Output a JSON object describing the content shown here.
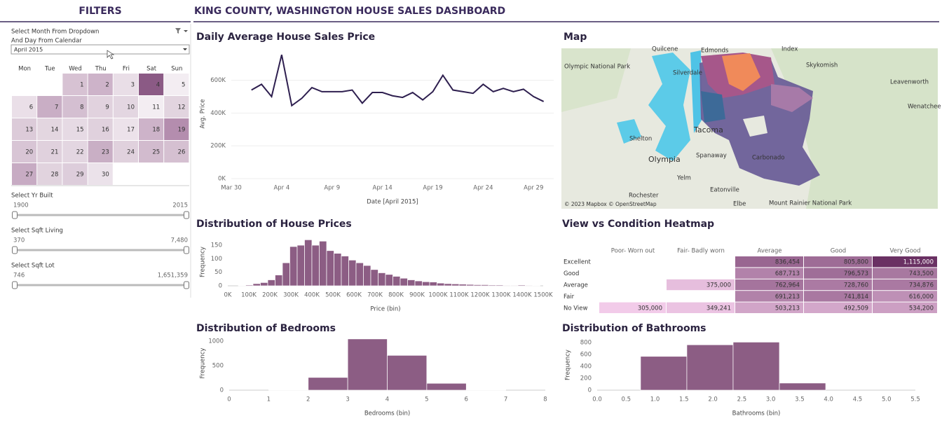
{
  "header": {
    "title": "KING COUNTY, WASHINGTON HOUSE SALES DASHBOARD"
  },
  "filters": {
    "title": "FILTERS",
    "month_prompt": [
      "Select Month From Dropdown",
      "And Day From Calendar"
    ],
    "month": "April 2015",
    "weekdays": [
      "Mon",
      "Tue",
      "Wed",
      "Thu",
      "Fri",
      "Sat",
      "Sun"
    ],
    "days": [
      1,
      2,
      3,
      4,
      5,
      6,
      7,
      8,
      9,
      10,
      11,
      12,
      13,
      14,
      15,
      16,
      17,
      18,
      19,
      20,
      21,
      22,
      23,
      24,
      25,
      26,
      27,
      28,
      29,
      30
    ],
    "day_colors": [
      "#d7c2d3",
      "#cdb3c9",
      "#e9dee7",
      "#8b5a85",
      "#f3edf2",
      "#eadfe8",
      "#c9aec5",
      "#d4bfd1",
      "#e1d2de",
      "#e3d6e1",
      "#f3edf2",
      "#e2d4df",
      "#dccbd9",
      "#e3d6e0",
      "#e6dae4",
      "#e0d1dd",
      "#ece2ea",
      "#cdb3c9",
      "#b48dae",
      "#d8c5d5",
      "#e0d1dd",
      "#e3d6e1",
      "#c9afc5",
      "#e0d1dd",
      "#d2bbce",
      "#d5c0d1",
      "#c7abc3",
      "#e1d3de",
      "#ddcddb",
      "#ebe2ea"
    ],
    "sliders": [
      {
        "label": "Select Yr Built",
        "min": "1900",
        "max": "2015"
      },
      {
        "label": "Select Sqft Living",
        "min": "370",
        "max": "7,480"
      },
      {
        "label": "Select Sqft Lot",
        "min": "746",
        "max": "1,651,359"
      }
    ]
  },
  "map": {
    "title": "Map",
    "places": [
      "Quilcene",
      "Edmonds",
      "Index",
      "Olympic National Park",
      "Silverdale",
      "Skykomish",
      "Leavenworth",
      "Wenatchee",
      "Shelton",
      "Tacoma",
      "Olympia",
      "Spanaway",
      "Carbonado",
      "Yelm",
      "Rochester",
      "Eatonville",
      "Elbe",
      "Mount Rainier National Park",
      "© 2023 Mapbox  © OpenStreetMap"
    ]
  },
  "chart_data": [
    {
      "type": "line",
      "title": "Daily Average House Sales Price",
      "x_label": "Date [April 2015]",
      "y_label": "Avg. Price",
      "color": "#2e1f4f",
      "grid": true,
      "x": [
        "2015-04-01",
        "2015-04-02",
        "2015-04-03",
        "2015-04-04",
        "2015-04-05",
        "2015-04-06",
        "2015-04-07",
        "2015-04-08",
        "2015-04-09",
        "2015-04-10",
        "2015-04-11",
        "2015-04-12",
        "2015-04-13",
        "2015-04-14",
        "2015-04-15",
        "2015-04-16",
        "2015-04-17",
        "2015-04-18",
        "2015-04-19",
        "2015-04-20",
        "2015-04-21",
        "2015-04-22",
        "2015-04-23",
        "2015-04-24",
        "2015-04-25",
        "2015-04-26",
        "2015-04-27",
        "2015-04-28",
        "2015-04-29",
        "2015-04-30"
      ],
      "values": [
        540000,
        575000,
        500000,
        755000,
        445000,
        490000,
        555000,
        530000,
        530000,
        530000,
        540000,
        460000,
        525000,
        525000,
        505000,
        495000,
        525000,
        480000,
        530000,
        630000,
        540000,
        530000,
        520000,
        575000,
        530000,
        550000,
        530000,
        545000,
        500000,
        470000
      ],
      "xlim": [
        "2015-03-30",
        "2015-05-01"
      ],
      "xticks": [
        {
          "value": "2015-03-30",
          "label": "Mar 30"
        },
        {
          "value": "2015-04-04",
          "label": "Apr 4"
        },
        {
          "value": "2015-04-09",
          "label": "Apr 9"
        },
        {
          "value": "2015-04-14",
          "label": "Apr 14"
        },
        {
          "value": "2015-04-19",
          "label": "Apr 19"
        },
        {
          "value": "2015-04-24",
          "label": "Apr 24"
        },
        {
          "value": "2015-04-29",
          "label": "Apr 29"
        }
      ],
      "ylim": [
        0,
        790000
      ],
      "yticks": [
        {
          "value": 0,
          "label": "0K"
        },
        {
          "value": 200000,
          "label": "200K"
        },
        {
          "value": 400000,
          "label": "400K"
        },
        {
          "value": 600000,
          "label": "600K"
        }
      ]
    },
    {
      "type": "histogram",
      "title": "Distribution of House Prices",
      "x_label": "Price (bin)",
      "y_label": "Frequency",
      "color": "#8c5d84",
      "bins": [
        50000,
        85000,
        120000,
        155000,
        190000,
        225000,
        260000,
        295000,
        330000,
        365000,
        400000,
        435000,
        470000,
        505000,
        540000,
        575000,
        610000,
        645000,
        680000,
        715000,
        750000,
        785000,
        820000,
        855000,
        890000,
        925000,
        960000,
        995000,
        1030000,
        1065000,
        1100000,
        1135000,
        1170000,
        1205000,
        1240000,
        1275000,
        1310000,
        1345000,
        1380000,
        1415000,
        1450000,
        1485000
      ],
      "values": [
        1,
        3,
        8,
        12,
        22,
        40,
        85,
        145,
        150,
        170,
        150,
        165,
        130,
        120,
        110,
        95,
        85,
        75,
        60,
        48,
        42,
        35,
        28,
        22,
        18,
        15,
        14,
        10,
        8,
        7,
        6,
        5,
        4,
        4,
        3,
        3,
        2,
        2,
        3,
        2,
        1
      ],
      "xlim": [
        0,
        1500000
      ],
      "xticks": [
        {
          "value": 0,
          "label": "0K"
        },
        {
          "value": 100000,
          "label": "100K"
        },
        {
          "value": 200000,
          "label": "200K"
        },
        {
          "value": 300000,
          "label": "300K"
        },
        {
          "value": 400000,
          "label": "400K"
        },
        {
          "value": 500000,
          "label": "500K"
        },
        {
          "value": 600000,
          "label": "600K"
        },
        {
          "value": 700000,
          "label": "700K"
        },
        {
          "value": 800000,
          "label": "800K"
        },
        {
          "value": 900000,
          "label": "900K"
        },
        {
          "value": 1000000,
          "label": "1000K"
        },
        {
          "value": 1100000,
          "label": "1100K"
        },
        {
          "value": 1200000,
          "label": "1200K"
        },
        {
          "value": 1300000,
          "label": "1300K"
        },
        {
          "value": 1400000,
          "label": "1400K"
        },
        {
          "value": 1500000,
          "label": "1500K"
        }
      ],
      "ylim": [
        0,
        176
      ],
      "yticks": [
        0,
        50,
        100,
        150
      ]
    },
    {
      "type": "heatmap",
      "title": "View vs Condition Heatmap",
      "colors": [
        "#f2cbe9",
        "#6a3163"
      ],
      "rows": [
        "Excellent",
        "Good",
        "Average",
        "Fair",
        "No View"
      ],
      "columns": [
        "Poor- Worn out",
        "Fair- Badly worn",
        "Average",
        "Good",
        "Very Good"
      ],
      "values": [
        [
          null,
          null,
          836454,
          805800,
          1115000
        ],
        [
          null,
          null,
          687713,
          796573,
          743500
        ],
        [
          null,
          375000,
          762964,
          728760,
          734876
        ],
        [
          null,
          null,
          691213,
          741814,
          616000
        ],
        [
          305000,
          349241,
          503213,
          492509,
          534200
        ]
      ],
      "value_labels": [
        [
          null,
          null,
          "836,454",
          "805,800",
          "1,115,000"
        ],
        [
          null,
          null,
          "687,713",
          "796,573",
          "743,500"
        ],
        [
          null,
          "375,000",
          "762,964",
          "728,760",
          "734,876"
        ],
        [
          null,
          null,
          "691,213",
          "741,814",
          "616,000"
        ],
        [
          "305,000",
          "349,241",
          "503,213",
          "492,509",
          "534,200"
        ]
      ]
    },
    {
      "type": "histogram",
      "title": "Distribution of Bedrooms",
      "x_label": "Bedrooms (bin)",
      "y_label": "Frequency",
      "color": "#8c5d84",
      "bins": [
        1,
        2,
        3,
        4,
        5,
        6,
        7
      ],
      "values": [
        10,
        260,
        1045,
        710,
        140,
        10
      ],
      "xlim": [
        0,
        8
      ],
      "xticks": [
        0,
        1,
        2,
        3,
        4,
        5,
        6,
        7,
        8
      ],
      "ylim": [
        0,
        1100
      ],
      "yticks": [
        0,
        500,
        1000
      ]
    },
    {
      "type": "histogram",
      "title": "Distribution of Bathrooms",
      "x_label": "Bathrooms (bin)",
      "y_label": "Frequency",
      "color": "#8c5d84",
      "bins": [
        0.75,
        1.55,
        2.35,
        3.15,
        3.95
      ],
      "values": [
        570,
        765,
        810,
        120
      ],
      "xlim": [
        0,
        5.5
      ],
      "xticks": [
        {
          "value": 0,
          "label": "0.0"
        },
        0.5,
        {
          "value": 1,
          "label": "1.0"
        },
        1.5,
        {
          "value": 2,
          "label": "2.0"
        },
        2.5,
        {
          "value": 3,
          "label": "3.0"
        },
        3.5,
        {
          "value": 4,
          "label": "4.0"
        },
        4.5,
        {
          "value": 5,
          "label": "5.0"
        },
        5.5
      ],
      "ylim": [
        0,
        850
      ],
      "yticks": [
        0,
        200,
        400,
        600,
        800
      ]
    }
  ]
}
